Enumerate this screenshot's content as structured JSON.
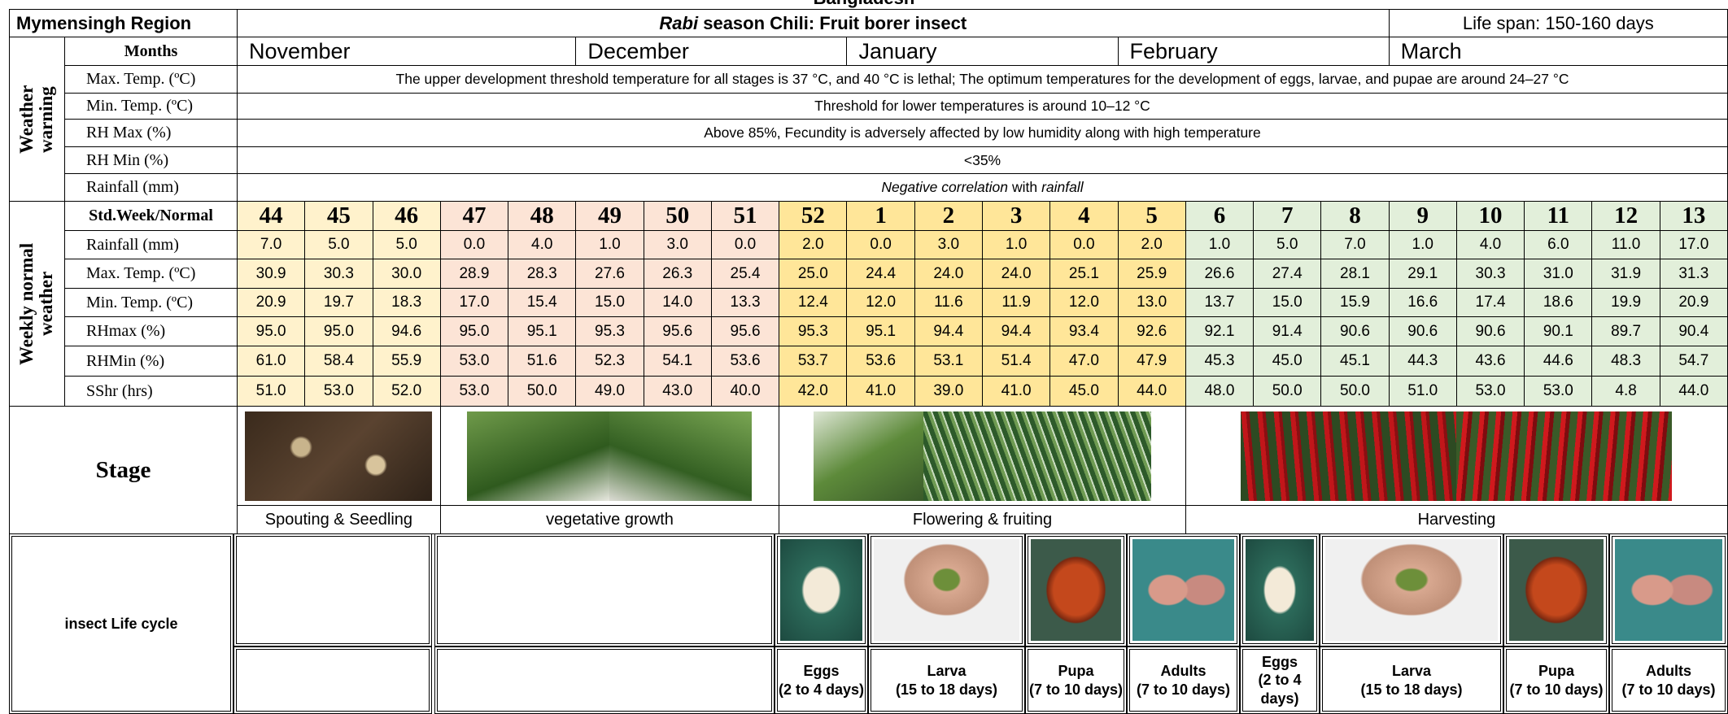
{
  "top_caption": "Bangladesh",
  "header": {
    "region": "Mymensingh Region",
    "title_italic": "Rabi",
    "title_rest": " season Chili: Fruit borer insect",
    "life_span": "Life span: 150-160 days"
  },
  "months": {
    "label": "Months",
    "names": [
      "November",
      "December",
      "January",
      "February",
      "March"
    ]
  },
  "weather_warning": {
    "label": "Weather warning",
    "rows": [
      {
        "label": "Max. Temp. (ºC)",
        "parts": [
          {
            "text": "The upper development threshold temperature for all stages is 37 °C, and 40 °C is lethal; The optimum temperatures for the development of eggs, larvae, and pupae are around 24–27 °C",
            "italic": false
          }
        ]
      },
      {
        "label": "Min. Temp. (ºC)",
        "parts": [
          {
            "text": "Threshold for lower temperatures is around 10–12 °C",
            "italic": false
          }
        ]
      },
      {
        "label": "RH Max (%)",
        "parts": [
          {
            "text": "Above 85%, Fecundity is adversely affected by low humidity along with high temperature",
            "italic": false
          }
        ]
      },
      {
        "label": "RH Min (%)",
        "parts": [
          {
            "text": "<35%",
            "italic": false
          }
        ]
      },
      {
        "label": "Rainfall (mm)",
        "parts": [
          {
            "text": "Negative correlation",
            "italic": true
          },
          {
            "text": "with",
            "italic": false
          },
          {
            "text": "rainfall",
            "italic": true
          }
        ]
      }
    ]
  },
  "weekly_weather": {
    "label": "Weekly normal weather",
    "header": "Std.Week/Normal",
    "weeks": [
      44,
      45,
      46,
      47,
      48,
      49,
      50,
      51,
      52,
      1,
      2,
      3,
      4,
      5,
      6,
      7,
      8,
      9,
      10,
      11,
      12,
      13
    ],
    "rows": [
      {
        "label": "Rainfall (mm)",
        "values": [
          "7.0",
          "5.0",
          "5.0",
          "0.0",
          "4.0",
          "1.0",
          "3.0",
          "0.0",
          "2.0",
          "0.0",
          "3.0",
          "1.0",
          "0.0",
          "2.0",
          "1.0",
          "5.0",
          "7.0",
          "1.0",
          "4.0",
          "6.0",
          "11.0",
          "17.0"
        ]
      },
      {
        "label": "Max. Temp. (ºC)",
        "values": [
          "30.9",
          "30.3",
          "30.0",
          "28.9",
          "28.3",
          "27.6",
          "26.3",
          "25.4",
          "25.0",
          "24.4",
          "24.0",
          "24.0",
          "25.1",
          "25.9",
          "26.6",
          "27.4",
          "28.1",
          "29.1",
          "30.3",
          "31.0",
          "31.9",
          "31.3"
        ]
      },
      {
        "label": "Min. Temp. (ºC)",
        "values": [
          "20.9",
          "19.7",
          "18.3",
          "17.0",
          "15.4",
          "15.0",
          "14.0",
          "13.3",
          "12.4",
          "12.0",
          "11.6",
          "11.9",
          "12.0",
          "13.0",
          "13.7",
          "15.0",
          "15.9",
          "16.6",
          "17.4",
          "18.6",
          "19.9",
          "20.9"
        ]
      },
      {
        "label": "RHmax (%)",
        "values": [
          "95.0",
          "95.0",
          "94.6",
          "95.0",
          "95.1",
          "95.3",
          "95.6",
          "95.6",
          "95.3",
          "95.1",
          "94.4",
          "94.4",
          "93.4",
          "92.6",
          "92.1",
          "91.4",
          "90.6",
          "90.6",
          "90.6",
          "90.1",
          "89.7",
          "90.4"
        ]
      },
      {
        "label": "RHMin (%)",
        "values": [
          "61.0",
          "58.4",
          "55.9",
          "53.0",
          "51.6",
          "52.3",
          "54.1",
          "53.6",
          "53.7",
          "53.6",
          "53.1",
          "51.4",
          "47.0",
          "47.9",
          "45.3",
          "45.0",
          "45.1",
          "44.3",
          "43.6",
          "44.6",
          "48.3",
          "54.7"
        ]
      },
      {
        "label": "SShr (hrs)",
        "values": [
          "51.0",
          "53.0",
          "52.0",
          "53.0",
          "50.0",
          "49.0",
          "43.0",
          "40.0",
          "42.0",
          "41.0",
          "39.0",
          "41.0",
          "45.0",
          "44.0",
          "48.0",
          "50.0",
          "50.0",
          "51.0",
          "53.0",
          "53.0",
          "4.8",
          "44.0"
        ]
      }
    ]
  },
  "stages": {
    "label": "Stage",
    "names": [
      "Spouting  & Seedling",
      "vegetative growth",
      "Flowering & fruiting",
      "Harvesting"
    ]
  },
  "insect_life_cycle": {
    "label": "insect Life cycle",
    "stages": [
      {
        "name": "Eggs",
        "duration": "(2 to 4 days)"
      },
      {
        "name": "Larva",
        "duration": "(15 to 18 days)"
      },
      {
        "name": "Pupa",
        "duration": "(7 to 10 days)"
      },
      {
        "name": "Adults",
        "duration": "(7 to 10 days)"
      },
      {
        "name": "Eggs",
        "duration": "(2 to 4 days)"
      },
      {
        "name": "Larva",
        "duration": "(15 to 18 days)"
      },
      {
        "name": "Pupa",
        "duration": "(7 to 10 days)"
      },
      {
        "name": "Adults",
        "duration": "(7 to 10 days)"
      }
    ]
  }
}
